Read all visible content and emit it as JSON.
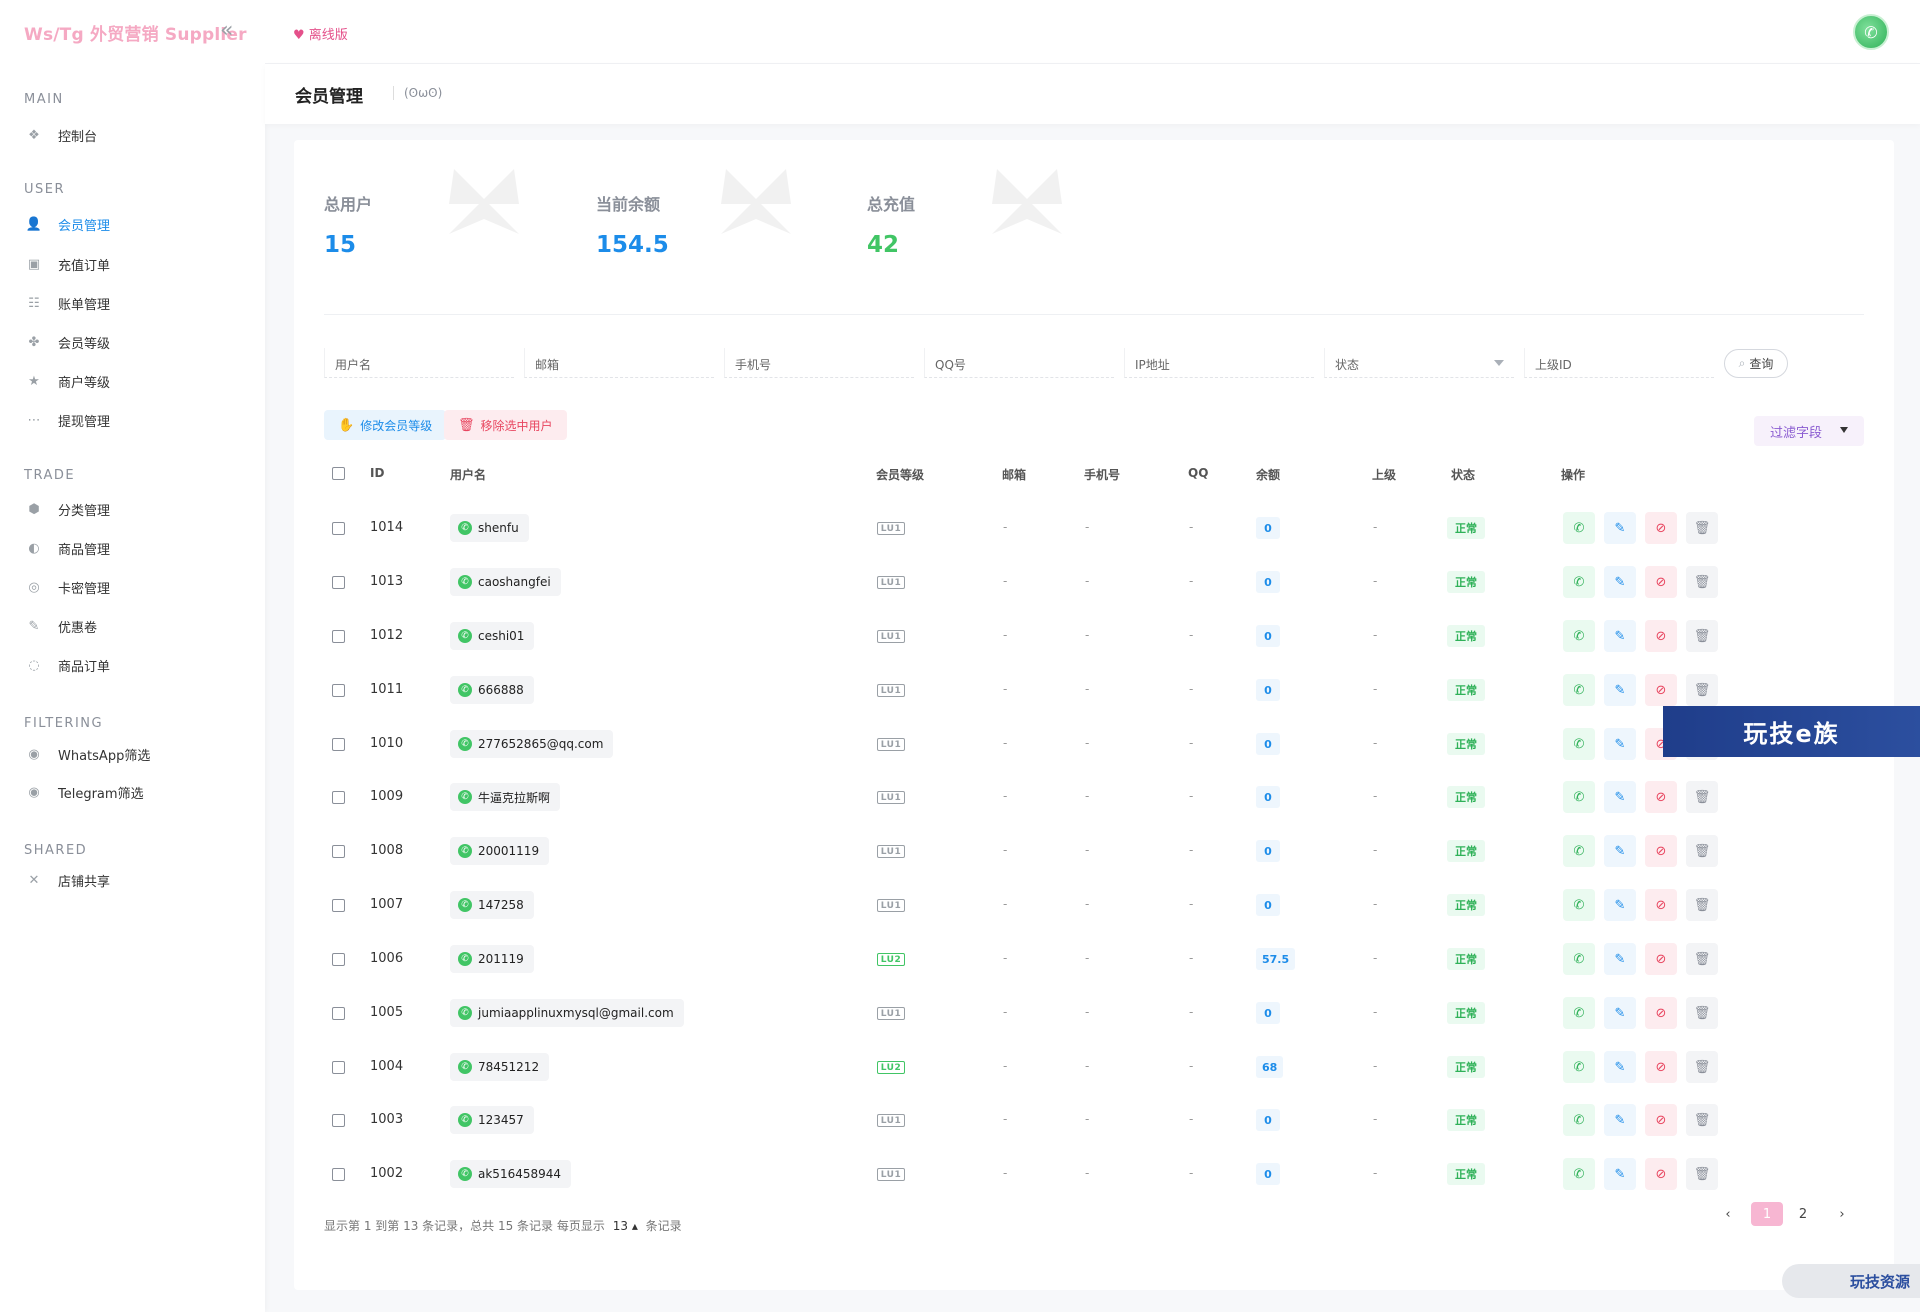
{
  "app": {
    "brand": "Ws/Tg 外贸营销 Supplier",
    "collapse_icon": "«",
    "offline_label": "离线版"
  },
  "sidebar": {
    "sections": [
      {
        "title": "MAIN",
        "items": [
          {
            "label": "控制台",
            "icon": "dashboard-icon",
            "active": false
          }
        ]
      },
      {
        "title": "USER",
        "items": [
          {
            "label": "会员管理",
            "icon": "user-icon",
            "active": true
          },
          {
            "label": "充值订单",
            "icon": "recharge-icon",
            "active": false
          },
          {
            "label": "账单管理",
            "icon": "bill-icon",
            "active": false
          },
          {
            "label": "会员等级",
            "icon": "level-icon",
            "active": false
          },
          {
            "label": "商户等级",
            "icon": "merchant-icon",
            "active": false
          },
          {
            "label": "提现管理",
            "icon": "withdraw-icon",
            "active": false
          }
        ]
      },
      {
        "title": "TRADE",
        "items": [
          {
            "label": "分类管理",
            "icon": "category-icon",
            "active": false
          },
          {
            "label": "商品管理",
            "icon": "goods-icon",
            "active": false
          },
          {
            "label": "卡密管理",
            "icon": "card-icon",
            "active": false
          },
          {
            "label": "优惠卷",
            "icon": "coupon-icon",
            "active": false
          },
          {
            "label": "商品订单",
            "icon": "order-icon",
            "active": false
          }
        ]
      },
      {
        "title": "FILTERING",
        "items": [
          {
            "label": "WhatsApp筛选",
            "icon": "whatsapp-filter-icon",
            "active": false
          },
          {
            "label": "Telegram筛选",
            "icon": "telegram-filter-icon",
            "active": false
          }
        ]
      },
      {
        "title": "SHARED",
        "items": [
          {
            "label": "店铺共享",
            "icon": "share-icon",
            "active": false
          }
        ]
      }
    ]
  },
  "page": {
    "title": "会员管理",
    "subtitle": "(ʘωʘ)"
  },
  "stats": [
    {
      "label": "总用户",
      "value": "15",
      "color": "#1c8ce9"
    },
    {
      "label": "当前余额",
      "value": "154.5",
      "color": "#1c8ce9"
    },
    {
      "label": "总充值",
      "value": "42",
      "color": "#41c565"
    }
  ],
  "filters": [
    {
      "placeholder": "用户名"
    },
    {
      "placeholder": "邮箱"
    },
    {
      "placeholder": "手机号"
    },
    {
      "placeholder": "QQ号"
    },
    {
      "placeholder": "IP地址"
    },
    {
      "placeholder": "状态",
      "select": true
    },
    {
      "placeholder": "上级ID"
    }
  ],
  "search_label": "查询",
  "actions": {
    "edit_level": "修改会员等级",
    "remove_selected": "移除选中用户",
    "filter_fields": "过滤字段"
  },
  "table": {
    "columns": [
      "ID",
      "用户名",
      "会员等级",
      "邮箱",
      "手机号",
      "QQ",
      "余额",
      "上级",
      "状态",
      "操作"
    ],
    "rows": [
      {
        "id": "1014",
        "username": "shenfu",
        "level": "LU1",
        "email": "-",
        "phone": "-",
        "qq": "-",
        "balance": "0",
        "parent": "-",
        "status": "正常"
      },
      {
        "id": "1013",
        "username": "caoshangfei",
        "level": "LU1",
        "email": "-",
        "phone": "-",
        "qq": "-",
        "balance": "0",
        "parent": "-",
        "status": "正常"
      },
      {
        "id": "1012",
        "username": "ceshi01",
        "level": "LU1",
        "email": "-",
        "phone": "-",
        "qq": "-",
        "balance": "0",
        "parent": "-",
        "status": "正常"
      },
      {
        "id": "1011",
        "username": "666888",
        "level": "LU1",
        "email": "-",
        "phone": "-",
        "qq": "-",
        "balance": "0",
        "parent": "-",
        "status": "正常"
      },
      {
        "id": "1010",
        "username": "277652865@qq.com",
        "level": "LU1",
        "email": "-",
        "phone": "-",
        "qq": "-",
        "balance": "0",
        "parent": "-",
        "status": "正常"
      },
      {
        "id": "1009",
        "username": "牛逼克拉斯啊",
        "level": "LU1",
        "email": "-",
        "phone": "-",
        "qq": "-",
        "balance": "0",
        "parent": "-",
        "status": "正常"
      },
      {
        "id": "1008",
        "username": "20001119",
        "level": "LU1",
        "email": "-",
        "phone": "-",
        "qq": "-",
        "balance": "0",
        "parent": "-",
        "status": "正常"
      },
      {
        "id": "1007",
        "username": "147258",
        "level": "LU1",
        "email": "-",
        "phone": "-",
        "qq": "-",
        "balance": "0",
        "parent": "-",
        "status": "正常"
      },
      {
        "id": "1006",
        "username": "201119",
        "level": "LU2",
        "email": "-",
        "phone": "-",
        "qq": "-",
        "balance": "57.5",
        "parent": "-",
        "status": "正常"
      },
      {
        "id": "1005",
        "username": "jumiaapplinuxmysql@gmail.com",
        "level": "LU1",
        "email": "-",
        "phone": "-",
        "qq": "-",
        "balance": "0",
        "parent": "-",
        "status": "正常"
      },
      {
        "id": "1004",
        "username": "78451212",
        "level": "LU2",
        "email": "-",
        "phone": "-",
        "qq": "-",
        "balance": "68",
        "parent": "-",
        "status": "正常"
      },
      {
        "id": "1003",
        "username": "123457",
        "level": "LU1",
        "email": "-",
        "phone": "-",
        "qq": "-",
        "balance": "0",
        "parent": "-",
        "status": "正常"
      },
      {
        "id": "1002",
        "username": "ak516458944",
        "level": "LU1",
        "email": "-",
        "phone": "-",
        "qq": "-",
        "balance": "0",
        "parent": "-",
        "status": "正常"
      }
    ]
  },
  "footer": {
    "info_prefix": "显示第 1 到第 13 条记录，总共 15 条记录   每页显示",
    "page_size": "13",
    "info_suffix": "条记录",
    "prev": "‹",
    "pages": [
      "1",
      "2"
    ],
    "current_page": "1",
    "next": "›"
  },
  "overlays": {
    "banner": "玩技e族",
    "bottom_watermark": "玩技资源"
  }
}
